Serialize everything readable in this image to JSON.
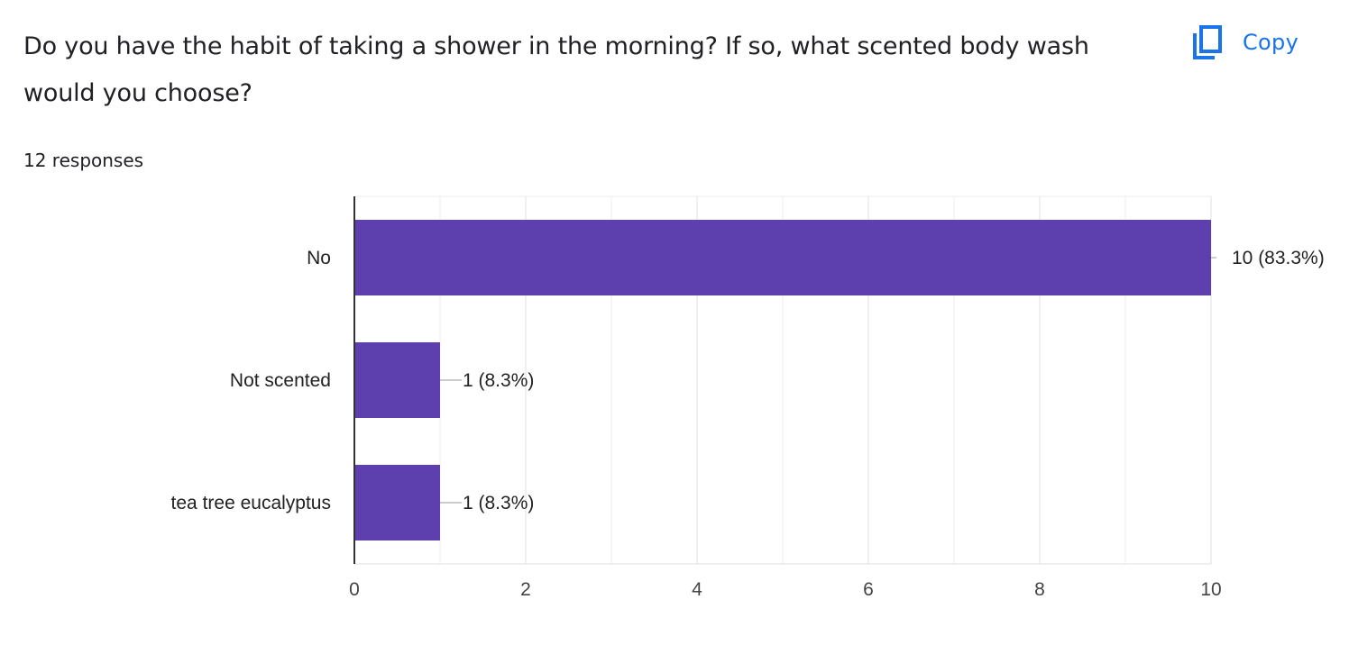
{
  "question": {
    "title": "Do you have the habit of taking a shower in the morning? If so, what scented body wash would you choose?",
    "response_count": "12 responses"
  },
  "toolbar": {
    "copy_label": "Copy",
    "copy_icon": "content-copy-icon",
    "accent_color": "#1a73e8"
  },
  "chart_data": {
    "type": "bar",
    "orientation": "horizontal",
    "categories": [
      "No",
      "Not scented",
      "tea tree eucalyptus"
    ],
    "values": [
      10,
      1,
      1
    ],
    "data_labels": [
      "10 (83.3%)",
      "1 (8.3%)",
      "1 (8.3%)"
    ],
    "xlim": [
      0,
      10
    ],
    "x_ticks": [
      0,
      2,
      4,
      6,
      8,
      10
    ],
    "grid": true,
    "bar_color": "#5e3fae",
    "title": "",
    "xlabel": "",
    "ylabel": ""
  }
}
